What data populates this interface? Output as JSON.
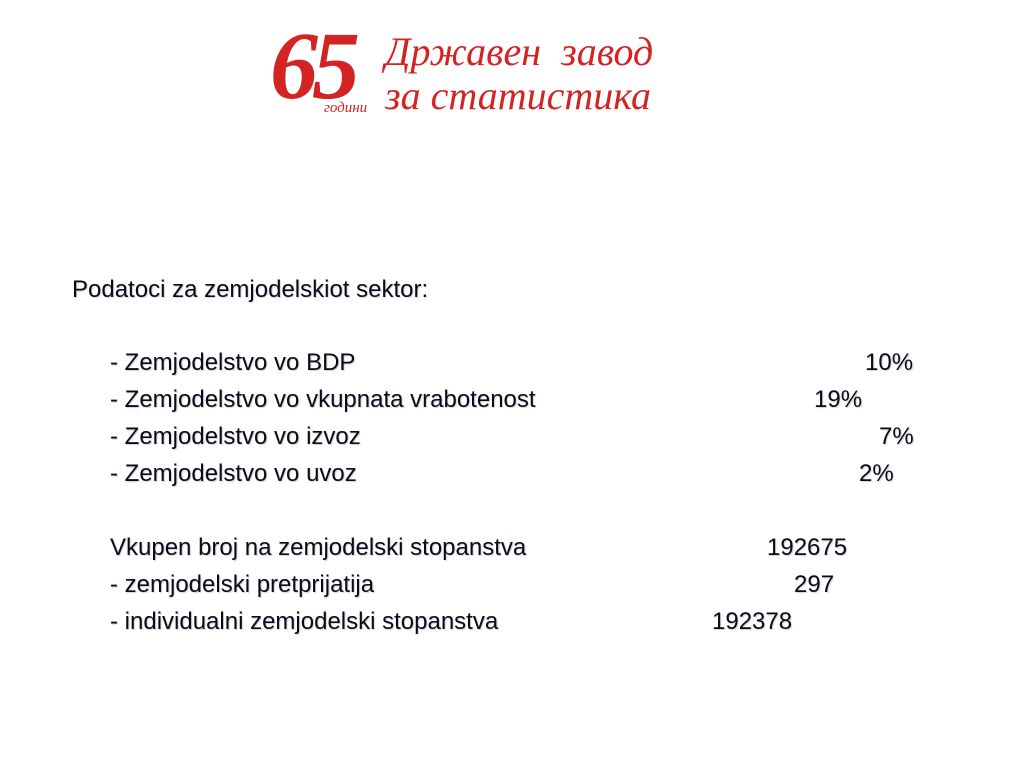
{
  "logo": {
    "number": "65",
    "godini": "години",
    "line1": "Државен  завод",
    "line2": "за статистика"
  },
  "heading": "Podatoci za zemjodelskiot sektor:",
  "shares": [
    {
      "label": "- Zemjodelstvo vo BDP",
      "value": "10%"
    },
    {
      "label": "- Zemjodelstvo vo vkupnata vrabotenost",
      "value": "19%"
    },
    {
      "label": "- Zemjodelstvo vo izvoz",
      "value": "7%"
    },
    {
      "label": "- Zemjodelstvo vo uvoz",
      "value": "2%"
    }
  ],
  "farms": [
    {
      "label": "Vkupen broj na zemjodelski stopanstva",
      "value": "192675"
    },
    {
      "label": "- zemjodelski pretprijatija",
      "value": "297"
    },
    {
      "label": "- individualni zemjodelski stopanstva",
      "value": "192378"
    }
  ]
}
